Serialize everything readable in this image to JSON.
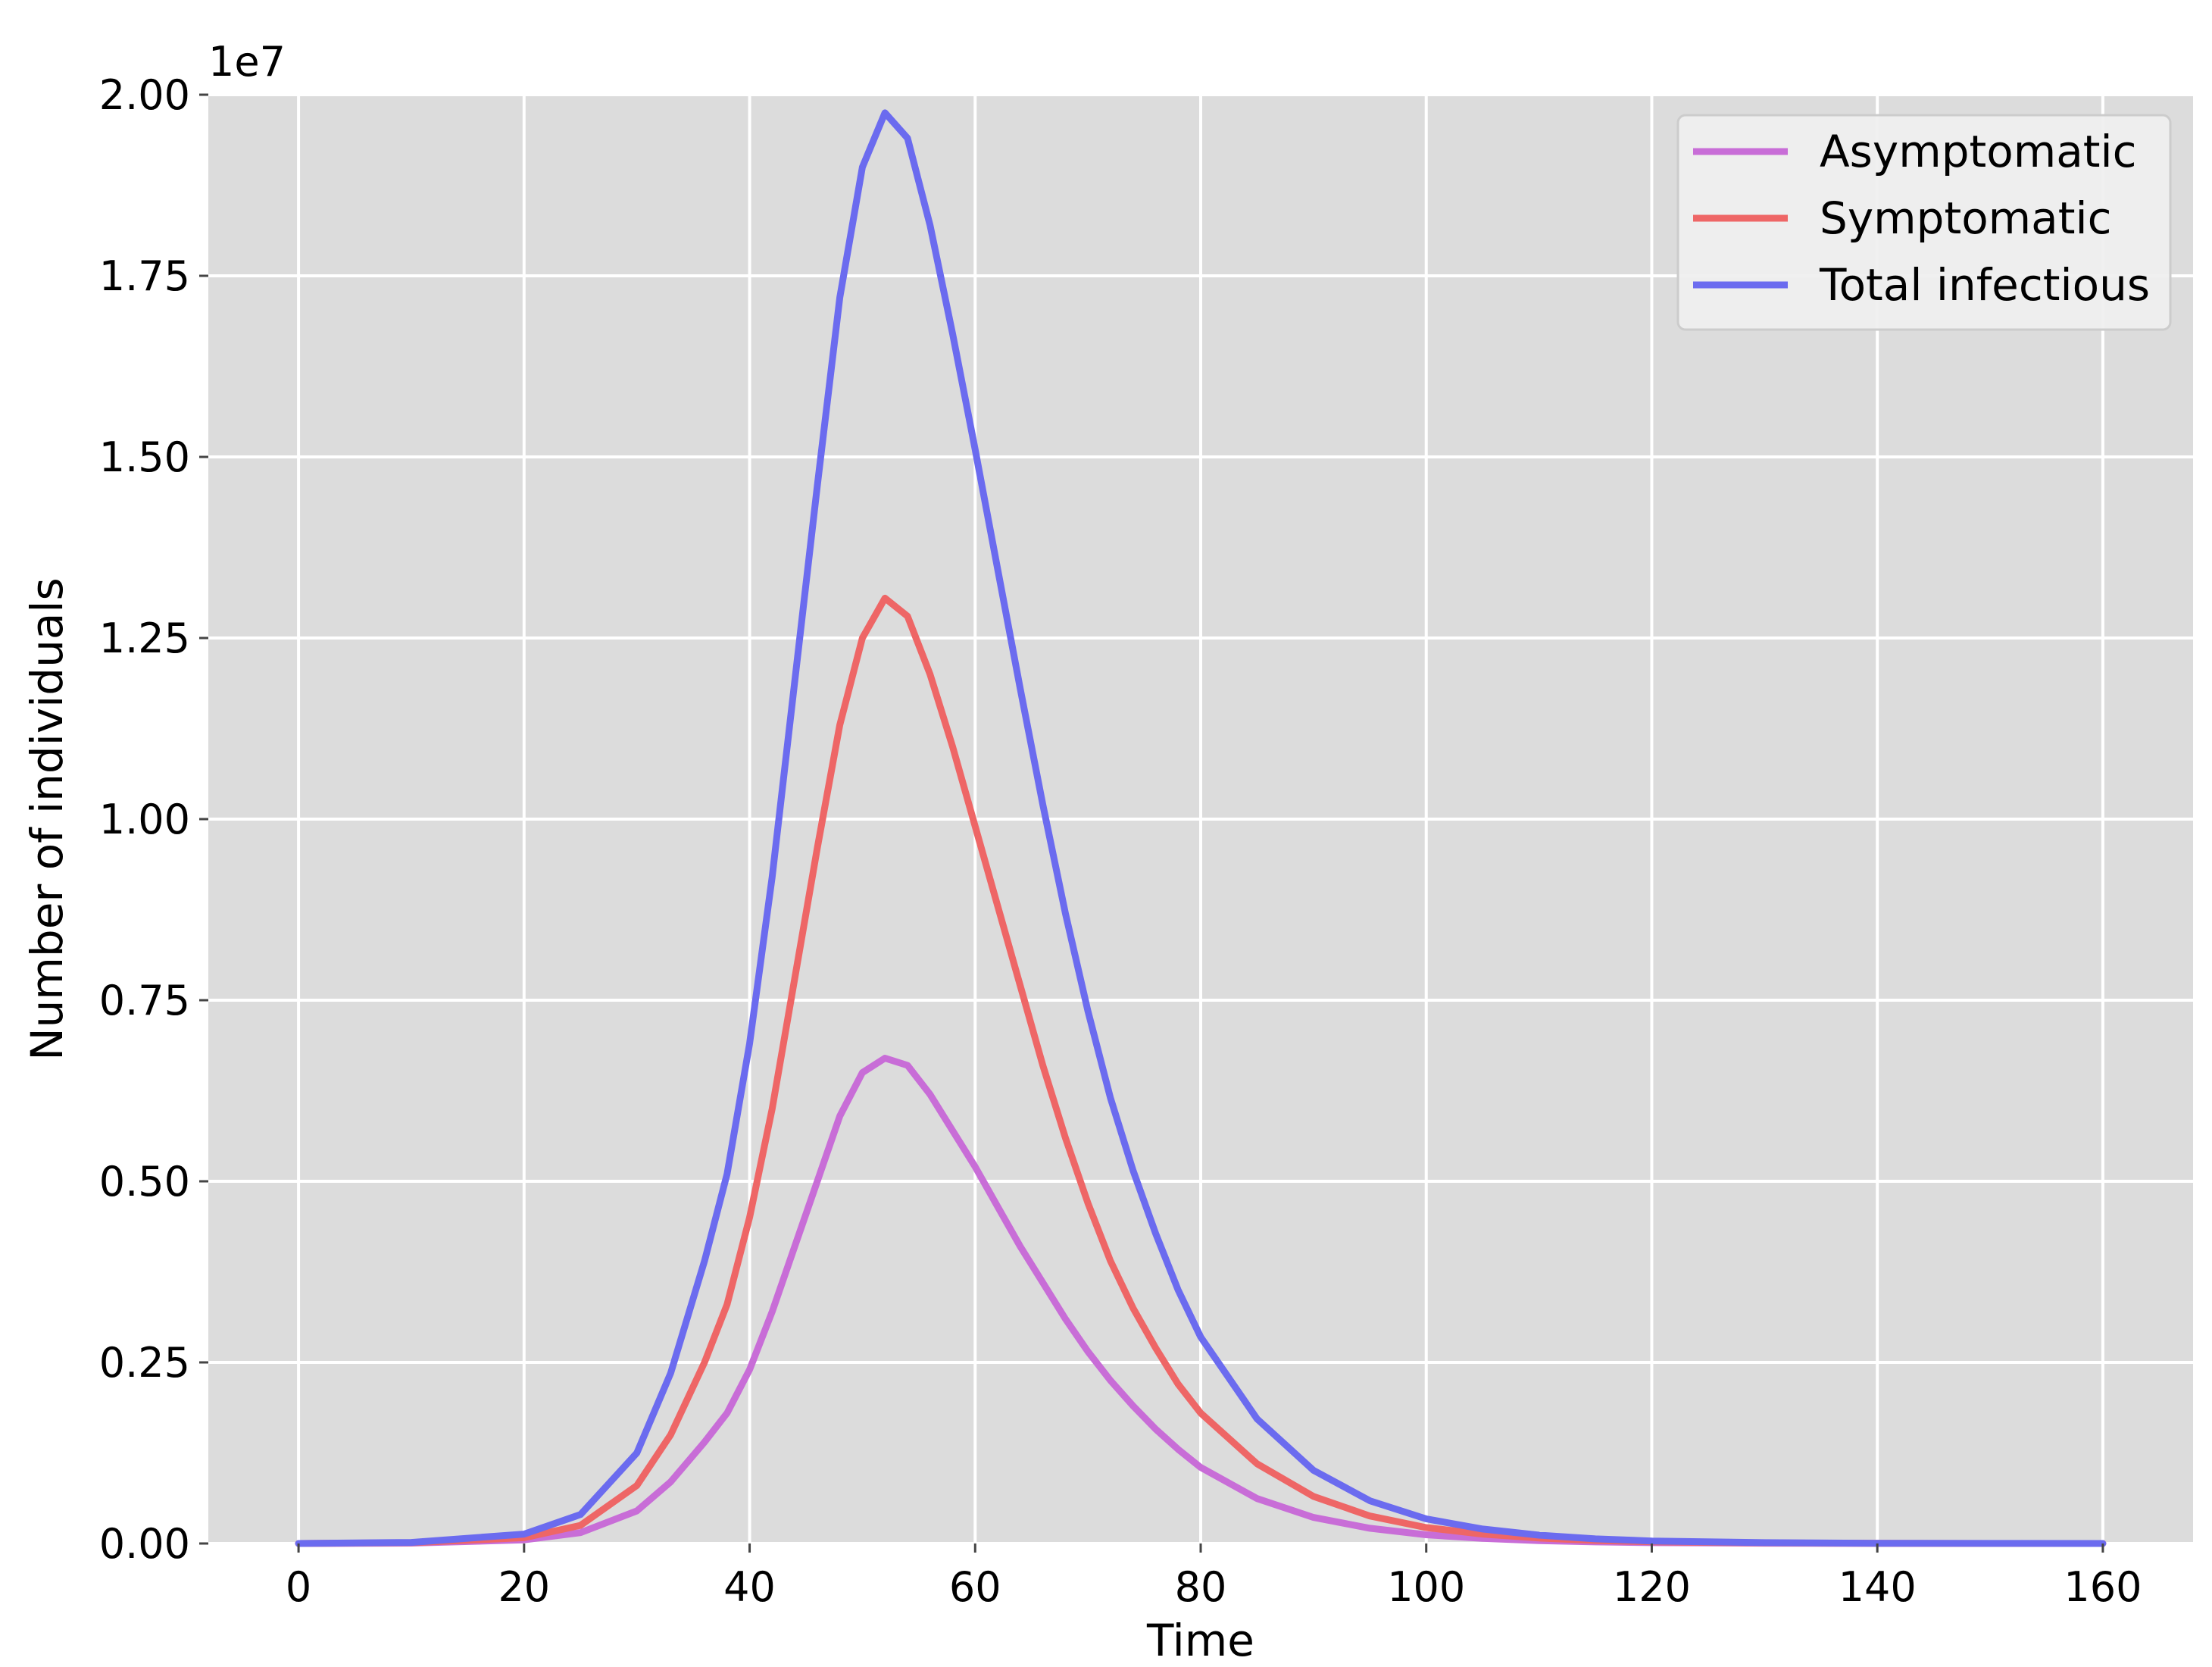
{
  "chart_data": {
    "type": "line",
    "xlabel": "Time",
    "ylabel": "Number of individuals",
    "y_offset_label": "1e7",
    "xlim": [
      -8,
      168
    ],
    "ylim": [
      0,
      2.0
    ],
    "grid": true,
    "legend_position": "top-right",
    "x_ticks": [
      0,
      20,
      40,
      60,
      80,
      100,
      120,
      140,
      160
    ],
    "x_tick_labels": [
      "0",
      "20",
      "40",
      "60",
      "80",
      "100",
      "120",
      "140",
      "160"
    ],
    "y_ticks": [
      0,
      0.25,
      0.5,
      0.75,
      1.0,
      1.25,
      1.5,
      1.75,
      2.0
    ],
    "y_tick_labels": [
      "0.00",
      "0.25",
      "0.50",
      "0.75",
      "1.00",
      "1.25",
      "1.50",
      "1.75",
      "2.00"
    ],
    "x": [
      0,
      10,
      20,
      25,
      30,
      33,
      36,
      38,
      40,
      42,
      44,
      46,
      48,
      50,
      52,
      54,
      56,
      58,
      60,
      62,
      64,
      66,
      68,
      70,
      72,
      74,
      76,
      78,
      80,
      85,
      90,
      95,
      100,
      105,
      110,
      115,
      120,
      130,
      140,
      150,
      160
    ],
    "series": [
      {
        "name": "Asymptomatic",
        "color": "#c86dd7",
        "values": [
          0,
          0.0005,
          0.005,
          0.015,
          0.045,
          0.085,
          0.14,
          0.18,
          0.24,
          0.32,
          0.41,
          0.5,
          0.59,
          0.65,
          0.67,
          0.66,
          0.62,
          0.57,
          0.52,
          0.465,
          0.41,
          0.36,
          0.31,
          0.265,
          0.225,
          0.19,
          0.158,
          0.13,
          0.105,
          0.062,
          0.036,
          0.021,
          0.012,
          0.007,
          0.004,
          0.0022,
          0.0012,
          0.0004,
          0.0001,
          0,
          0
        ]
      },
      {
        "name": "Symptomatic",
        "color": "#ee6666",
        "values": [
          0,
          0.001,
          0.008,
          0.025,
          0.08,
          0.15,
          0.25,
          0.33,
          0.45,
          0.6,
          0.78,
          0.96,
          1.13,
          1.25,
          1.305,
          1.28,
          1.2,
          1.1,
          0.99,
          0.88,
          0.77,
          0.66,
          0.56,
          0.47,
          0.39,
          0.325,
          0.27,
          0.22,
          0.18,
          0.11,
          0.065,
          0.038,
          0.022,
          0.013,
          0.0075,
          0.0042,
          0.0023,
          0.0007,
          0.0002,
          5e-05,
          0
        ]
      },
      {
        "name": "Total infectious",
        "color": "#6b6bef",
        "values": [
          0,
          0.0015,
          0.013,
          0.04,
          0.125,
          0.235,
          0.39,
          0.51,
          0.69,
          0.92,
          1.19,
          1.46,
          1.72,
          1.9,
          1.975,
          1.94,
          1.82,
          1.67,
          1.51,
          1.345,
          1.18,
          1.02,
          0.87,
          0.735,
          0.615,
          0.515,
          0.428,
          0.35,
          0.285,
          0.172,
          0.101,
          0.059,
          0.034,
          0.02,
          0.0115,
          0.0064,
          0.0035,
          0.0011,
          0.0003,
          0.0001,
          0
        ]
      }
    ]
  }
}
